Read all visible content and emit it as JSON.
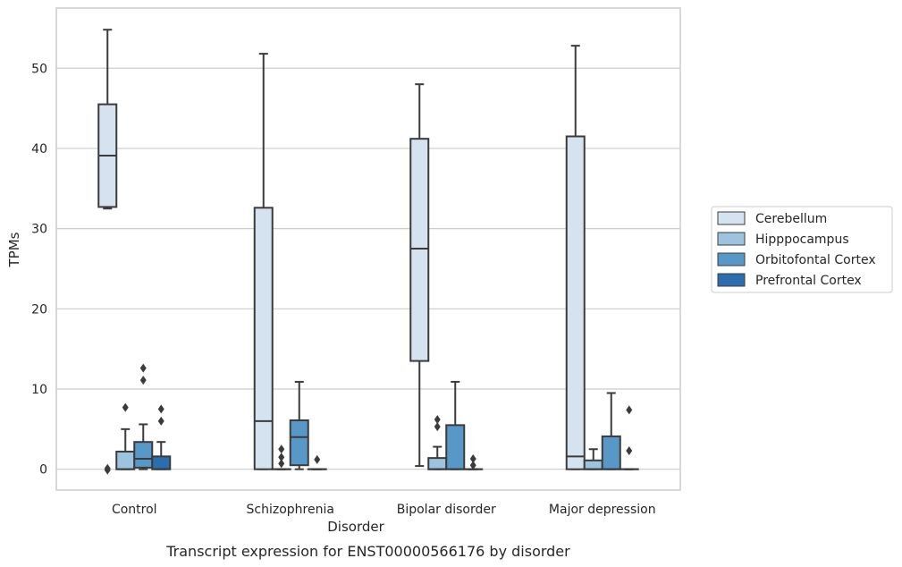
{
  "chart_data": {
    "type": "box",
    "title": "",
    "caption": "Transcript expression for ENST00000566176 by disorder",
    "xlabel": "Disorder",
    "ylabel": "TPMs",
    "ylim": [
      -2.6,
      57.5
    ],
    "yticks": [
      0,
      10,
      20,
      30,
      40,
      50
    ],
    "grid": "horizontal",
    "legend_position": "right",
    "categories": [
      "Control",
      "Schizophrenia",
      "Bipolar disorder",
      "Major depression"
    ],
    "series": [
      {
        "name": "Cerebellum",
        "color": "#d5e3f1",
        "boxes": [
          {
            "whislo": 32.5,
            "q1": 32.7,
            "med": 39.1,
            "q3": 45.5,
            "whishi": 54.8,
            "fliers": [
              0.1,
              -0.1
            ]
          },
          {
            "whislo": 0,
            "q1": 0,
            "med": 6.0,
            "q3": 32.6,
            "whishi": 51.8,
            "fliers": []
          },
          {
            "whislo": 0.4,
            "q1": 13.5,
            "med": 27.5,
            "q3": 41.2,
            "whishi": 48.0,
            "fliers": []
          },
          {
            "whislo": 0,
            "q1": 0,
            "med": 1.6,
            "q3": 41.5,
            "whishi": 52.8,
            "fliers": []
          }
        ]
      },
      {
        "name": "Hipppocampus",
        "color": "#9dc4df",
        "boxes": [
          {
            "whislo": 0,
            "q1": 0,
            "med": 0,
            "q3": 2.2,
            "whishi": 5.0,
            "fliers": [
              7.7
            ]
          },
          {
            "whislo": 0,
            "q1": 0,
            "med": 0,
            "q3": 0,
            "whishi": 0,
            "fliers": [
              0.7,
              1.5,
              2.5
            ]
          },
          {
            "whislo": 0,
            "q1": 0,
            "med": 0,
            "q3": 1.4,
            "whishi": 2.8,
            "fliers": [
              5.3,
              6.2
            ]
          },
          {
            "whislo": 0,
            "q1": 0,
            "med": 0,
            "q3": 1.1,
            "whishi": 2.5,
            "fliers": []
          }
        ]
      },
      {
        "name": "Orbitofontal Cortex",
        "color": "#5898c9",
        "boxes": [
          {
            "whislo": 0,
            "q1": 0.2,
            "med": 1.3,
            "q3": 3.4,
            "whishi": 5.6,
            "fliers": [
              11.1,
              12.6
            ]
          },
          {
            "whislo": 0,
            "q1": 0.5,
            "med": 4.0,
            "q3": 6.1,
            "whishi": 10.9,
            "fliers": []
          },
          {
            "whislo": 0,
            "q1": 0,
            "med": 0,
            "q3": 5.5,
            "whishi": 10.9,
            "fliers": []
          },
          {
            "whislo": 0,
            "q1": 0,
            "med": 0,
            "q3": 4.1,
            "whishi": 9.5,
            "fliers": []
          }
        ]
      },
      {
        "name": "Prefrontal Cortex",
        "color": "#2a6eb0",
        "boxes": [
          {
            "whislo": 0,
            "q1": 0,
            "med": 0,
            "q3": 1.6,
            "whishi": 3.4,
            "fliers": [
              6.0,
              7.5
            ]
          },
          {
            "whislo": 0,
            "q1": 0,
            "med": 0,
            "q3": 0,
            "whishi": 0,
            "fliers": [
              1.2
            ]
          },
          {
            "whislo": 0,
            "q1": 0,
            "med": 0,
            "q3": 0,
            "whishi": 0,
            "fliers": [
              0.5,
              1.3
            ]
          },
          {
            "whislo": 0,
            "q1": 0,
            "med": 0,
            "q3": 0,
            "whishi": 0,
            "fliers": [
              2.3,
              7.4
            ]
          }
        ]
      }
    ]
  }
}
